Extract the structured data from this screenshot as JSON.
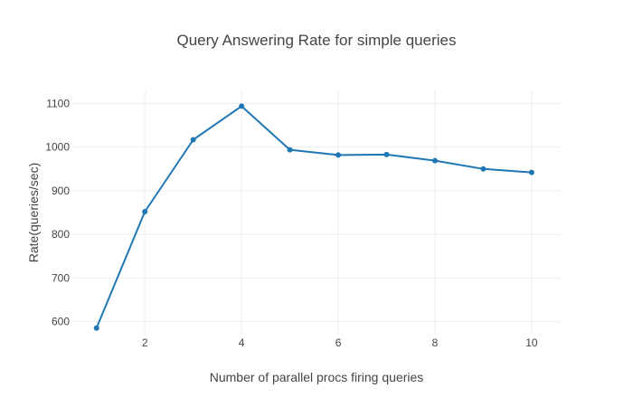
{
  "chart_data": {
    "type": "line",
    "title": "Query Answering Rate for simple queries",
    "xlabel": "Number of parallel procs firing queries",
    "ylabel": "Rate(queries/sec)",
    "xlim": [
      0.5,
      10.6
    ],
    "ylim": [
      570,
      1130
    ],
    "x_ticks": [
      2,
      4,
      6,
      8,
      10
    ],
    "y_ticks": [
      600,
      700,
      800,
      900,
      1000,
      1100
    ],
    "grid": true,
    "legend": "none",
    "color": "#1f77b4",
    "series": [
      {
        "x": [
          1,
          2,
          3,
          4,
          5,
          6,
          7,
          8,
          9,
          10
        ],
        "values": [
          585,
          852,
          1017,
          1094,
          994,
          982,
          983,
          969,
          950,
          942
        ]
      }
    ]
  }
}
